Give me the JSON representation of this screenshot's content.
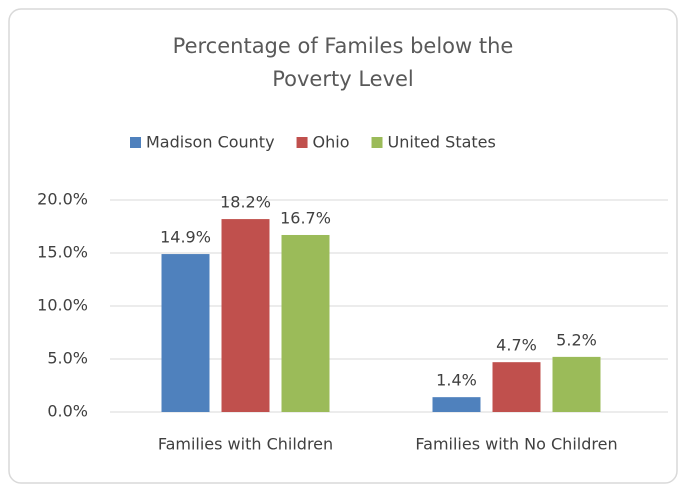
{
  "chart_data": {
    "type": "bar",
    "title": "Percentage of Familes below the Poverty Level",
    "categories": [
      "Families with Children",
      "Families with No Children"
    ],
    "series": [
      {
        "name": "Madison County",
        "color": "#4f81bd",
        "values": [
          14.9,
          1.4
        ],
        "value_labels": [
          "14.9%",
          "1.4%"
        ]
      },
      {
        "name": "Ohio",
        "color": "#c0504d",
        "values": [
          18.2,
          4.7
        ],
        "value_labels": [
          "18.2%",
          "4.7%"
        ]
      },
      {
        "name": "United States",
        "color": "#9bbb59",
        "values": [
          16.7,
          5.2
        ],
        "value_labels": [
          "16.7%",
          "5.2%"
        ]
      }
    ],
    "ylim": [
      0,
      20
    ],
    "yticks": [
      {
        "value": 0,
        "label": "0.0%"
      },
      {
        "value": 5,
        "label": "5.0%"
      },
      {
        "value": 10,
        "label": "10.0%"
      },
      {
        "value": 15,
        "label": "15.0%"
      },
      {
        "value": 20,
        "label": "20.0%"
      }
    ],
    "grid": true,
    "legend": "top"
  }
}
